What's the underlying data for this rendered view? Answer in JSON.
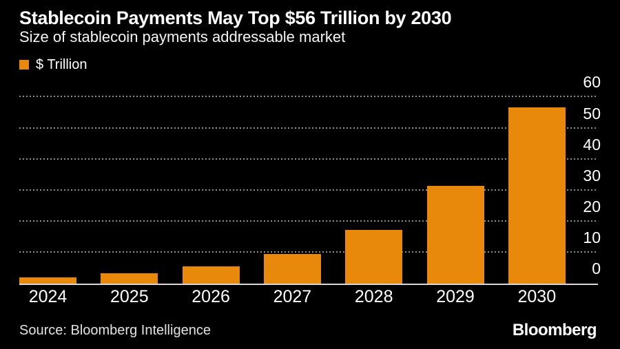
{
  "page": {
    "background_color": "#000000"
  },
  "header": {
    "title": "Stablecoin Payments May Top $56 Trillion by 2030",
    "subtitle": "Size of stablecoin payments addressable market"
  },
  "legend": {
    "items": [
      {
        "label": "$ Trillion",
        "color": "#E8890B"
      }
    ]
  },
  "chart_data": {
    "type": "bar",
    "title": "Stablecoin Payments May Top $56 Trillion by 2030",
    "subtitle": "Size of stablecoin payments addressable market",
    "categories": [
      "2024",
      "2025",
      "2026",
      "2027",
      "2028",
      "2029",
      "2030"
    ],
    "series": [
      {
        "name": "$ Trillion",
        "values": [
          1.9,
          3.3,
          5.5,
          9.6,
          17.3,
          31.5,
          56.8
        ]
      }
    ],
    "values": [
      1.9,
      3.3,
      5.5,
      9.6,
      17.3,
      31.5,
      56.8
    ],
    "xlabel": "",
    "ylabel": "$ Trillion",
    "ylim": [
      0,
      60
    ],
    "yticks": [
      0,
      10,
      20,
      30,
      40,
      50,
      60
    ],
    "y_axis_side": "right",
    "grid": "horizontal-dotted",
    "bar_color": "#E8890B",
    "gridline_color": "#8f8f8f",
    "baseline_color": "#d9d9d9",
    "tick_label_color": "#ffffff"
  },
  "footer": {
    "source": "Source: Bloomberg Intelligence",
    "brand": "Bloomberg"
  }
}
